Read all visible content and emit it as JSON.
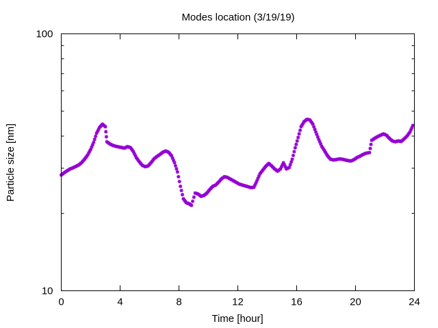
{
  "chart_data": {
    "type": "scatter",
    "title": "Modes location (3/19/19)",
    "xlabel": "Time [hour]",
    "ylabel": "Particle size [nm]",
    "xlim": [
      0,
      24
    ],
    "ylim": [
      10,
      100
    ],
    "yscale": "log",
    "xticks": [
      0,
      4,
      8,
      12,
      16,
      20,
      24
    ],
    "yticks": [
      10,
      100
    ],
    "grid": false,
    "marker_color": "#9400d3",
    "series": [
      {
        "x": [
          0.0,
          0.2,
          0.4,
          0.6,
          0.8,
          1.0,
          1.2,
          1.4,
          1.6,
          1.8,
          2.0,
          2.2,
          2.4,
          2.6,
          2.8,
          3.0,
          3.1,
          3.3,
          3.5,
          3.7,
          3.9,
          4.1,
          4.3,
          4.5,
          4.7,
          4.9,
          5.1,
          5.3,
          5.5,
          5.7,
          5.9,
          6.1,
          6.3,
          6.5,
          6.7,
          6.9,
          7.1,
          7.3,
          7.5,
          7.7,
          7.9,
          8.1,
          8.3,
          8.5,
          8.7,
          8.85,
          9.1,
          9.3,
          9.5,
          9.7,
          9.9,
          10.1,
          10.3,
          10.5,
          10.7,
          10.9,
          11.1,
          11.3,
          11.5,
          11.7,
          11.9,
          12.1,
          12.3,
          12.5,
          12.7,
          12.9,
          13.1,
          13.3,
          13.5,
          13.7,
          13.9,
          14.1,
          14.3,
          14.5,
          14.7,
          14.9,
          15.1,
          15.3,
          15.5,
          15.7,
          15.9,
          16.1,
          16.3,
          16.5,
          16.7,
          16.9,
          17.1,
          17.3,
          17.5,
          17.7,
          17.9,
          18.1,
          18.3,
          18.5,
          18.7,
          18.9,
          19.1,
          19.3,
          19.5,
          19.7,
          19.9,
          20.1,
          20.3,
          20.5,
          20.7,
          20.95,
          21.1,
          21.3,
          21.5,
          21.7,
          21.9,
          22.1,
          22.3,
          22.5,
          22.7,
          22.9,
          23.1,
          23.3,
          23.5,
          23.7,
          23.9
        ],
        "y": [
          28.2,
          28.8,
          29.3,
          29.8,
          30.1,
          30.5,
          30.9,
          31.6,
          32.6,
          33.8,
          35.5,
          37.8,
          41.0,
          43.2,
          44.5,
          43.5,
          38.0,
          37.3,
          36.8,
          36.5,
          36.3,
          36.1,
          35.9,
          36.4,
          36.1,
          34.8,
          33.0,
          31.8,
          30.8,
          30.4,
          30.6,
          31.5,
          32.6,
          33.3,
          33.9,
          34.6,
          35.0,
          34.6,
          33.5,
          31.5,
          29.0,
          25.5,
          22.8,
          22.0,
          21.8,
          21.5,
          24.0,
          23.8,
          23.3,
          23.5,
          24.0,
          24.8,
          25.5,
          25.8,
          26.5,
          27.3,
          27.8,
          27.6,
          27.2,
          26.8,
          26.4,
          26.0,
          25.8,
          25.6,
          25.4,
          25.2,
          25.3,
          26.8,
          28.5,
          29.5,
          30.5,
          31.3,
          30.6,
          29.8,
          29.2,
          29.8,
          31.5,
          29.8,
          30.2,
          32.5,
          36.0,
          39.5,
          43.5,
          45.5,
          46.5,
          46.2,
          44.5,
          41.5,
          38.8,
          36.5,
          35.0,
          33.5,
          32.5,
          32.3,
          32.4,
          32.6,
          32.5,
          32.3,
          32.1,
          32.0,
          32.4,
          33.0,
          33.4,
          33.9,
          34.3,
          34.5,
          38.5,
          39.2,
          39.8,
          40.3,
          40.8,
          40.3,
          39.2,
          38.3,
          38.0,
          38.3,
          38.1,
          39.0,
          40.0,
          41.5,
          44.0
        ]
      }
    ]
  }
}
